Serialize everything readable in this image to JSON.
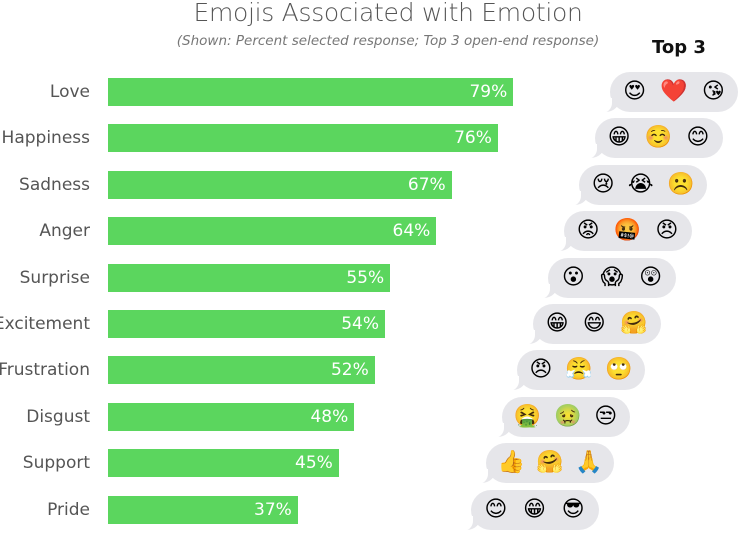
{
  "chart_data": {
    "type": "bar",
    "orientation": "horizontal",
    "title": "Emojis Associated with Emotion",
    "subtitle": "(Shown: Percent selected response; Top 3 open-end response)",
    "categories": [
      "Love",
      "Happiness",
      "Sadness",
      "Anger",
      "Surprise",
      "Excitement",
      "Frustration",
      "Disgust",
      "Support",
      "Pride"
    ],
    "values": [
      79,
      76,
      67,
      64,
      55,
      54,
      52,
      48,
      45,
      37
    ],
    "value_labels": [
      "79%",
      "76%",
      "67%",
      "64%",
      "55%",
      "54%",
      "52%",
      "48%",
      "45%",
      "37%"
    ],
    "xlim": [
      0,
      100
    ],
    "grid": false,
    "bar_color": "#5bd65e",
    "top3_header": "Top 3",
    "top3_emojis": [
      [
        "😍",
        "❤️",
        "😘"
      ],
      [
        "😁",
        "☺️",
        "😊"
      ],
      [
        "😢",
        "😭",
        "☹️"
      ],
      [
        "😡",
        "🤬",
        "😠"
      ],
      [
        "😮",
        "😱",
        "😲"
      ],
      [
        "😁",
        "😄",
        "🤗"
      ],
      [
        "😠",
        "😤",
        "🙄"
      ],
      [
        "🤮",
        "🤢",
        "😒"
      ],
      [
        "👍",
        "🤗",
        "🙏"
      ],
      [
        "😊",
        "😁",
        "😎"
      ]
    ]
  }
}
